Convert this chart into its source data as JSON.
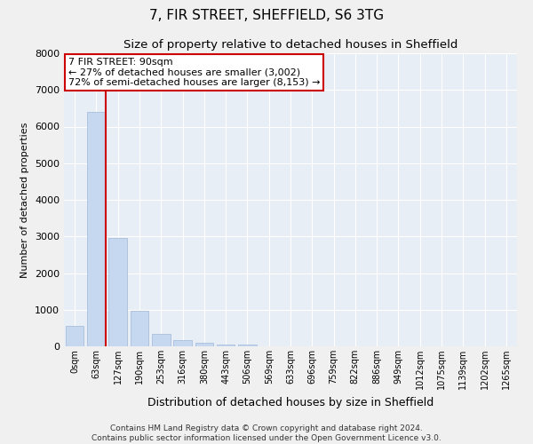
{
  "title": "7, FIR STREET, SHEFFIELD, S6 3TG",
  "subtitle": "Size of property relative to detached houses in Sheffield",
  "xlabel": "Distribution of detached houses by size in Sheffield",
  "ylabel": "Number of detached properties",
  "footer_line1": "Contains HM Land Registry data © Crown copyright and database right 2024.",
  "footer_line2": "Contains public sector information licensed under the Open Government Licence v3.0.",
  "categories": [
    "0sqm",
    "63sqm",
    "127sqm",
    "190sqm",
    "253sqm",
    "316sqm",
    "380sqm",
    "443sqm",
    "506sqm",
    "569sqm",
    "633sqm",
    "696sqm",
    "759sqm",
    "822sqm",
    "886sqm",
    "949sqm",
    "1012sqm",
    "1075sqm",
    "1139sqm",
    "1202sqm",
    "1265sqm"
  ],
  "values": [
    550,
    6400,
    2950,
    970,
    340,
    170,
    100,
    60,
    50,
    0,
    0,
    0,
    0,
    0,
    0,
    0,
    0,
    0,
    0,
    0,
    0
  ],
  "bar_color": "#c5d8f0",
  "bar_edge_color": "#a0b8d8",
  "ylim": [
    0,
    8000
  ],
  "yticks": [
    0,
    1000,
    2000,
    3000,
    4000,
    5000,
    6000,
    7000,
    8000
  ],
  "annotation_line1": "7 FIR STREET: 90sqm",
  "annotation_line2": "← 27% of detached houses are smaller (3,002)",
  "annotation_line3": "72% of semi-detached houses are larger (8,153) →",
  "vline_color": "#cc0000",
  "annotation_box_edge_color": "#cc0000",
  "bg_color": "#e8eef5",
  "grid_color": "#ffffff",
  "fig_bg_color": "#f0f0f0",
  "title_fontsize": 11,
  "subtitle_fontsize": 9.5,
  "ylabel_fontsize": 8,
  "xlabel_fontsize": 9,
  "tick_fontsize": 7,
  "footer_fontsize": 6.5,
  "annotation_fontsize": 8
}
